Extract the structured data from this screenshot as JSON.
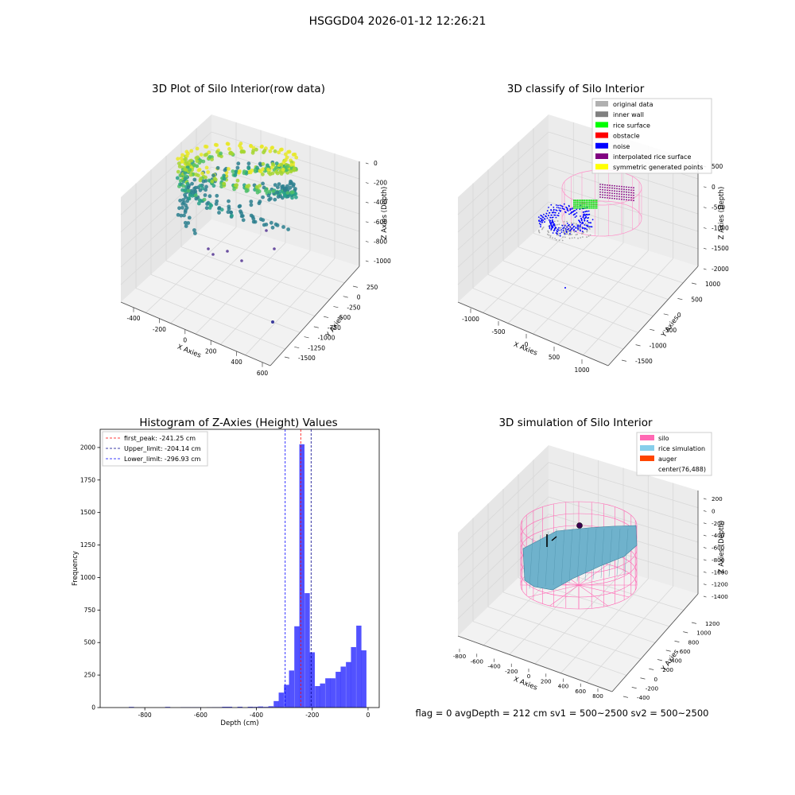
{
  "suptitle": "HSGGD04 2026-01-12 12:26:21",
  "footer": "flag = 0     avgDepth = 212 cm  sv1 = 500~2500  sv2 = 500~2500",
  "panel1": {
    "title": "3D Plot of Silo Interior(row data)",
    "xlabel": "X Axies",
    "ylabel": "Y Axies",
    "zlabel": "Z Axies (Depth)",
    "xticks": [
      "-400",
      "-200",
      "0",
      "200",
      "400",
      "600"
    ],
    "yticks": [
      "250",
      "0",
      "-250",
      "-500",
      "-750",
      "-1000",
      "-1250",
      "-1500"
    ],
    "zticks": [
      "0",
      "-200",
      "-400",
      "-600",
      "-800",
      "-1000"
    ]
  },
  "panel2": {
    "title": "3D classify of Silo Interior",
    "xlabel": "X Axies",
    "ylabel": "Y Axies",
    "zlabel": "Z Axies (Depth)",
    "xticks": [
      "-1000",
      "-500",
      "0",
      "500",
      "1000"
    ],
    "yticks": [
      "1000",
      "500",
      "0",
      "-500",
      "-1000",
      "-1500"
    ],
    "zticks": [
      "500",
      "0",
      "-500",
      "-1000",
      "-1500",
      "-2000"
    ],
    "legend": [
      {
        "label": "original data",
        "color": "#b0b0b0"
      },
      {
        "label": "inner wall",
        "color": "#808080"
      },
      {
        "label": "rice surface",
        "color": "#00ff00"
      },
      {
        "label": "obstacle",
        "color": "#ff0000"
      },
      {
        "label": "noise",
        "color": "#0000ff"
      },
      {
        "label": "interpolated rice surface",
        "color": "#800080"
      },
      {
        "label": "symmetric generated points",
        "color": "#ffff00"
      }
    ]
  },
  "panel4": {
    "title": "3D simulation of Silo Interior",
    "xlabel": "X Axies",
    "ylabel": "Y Axies",
    "zlabel": "Z Axies (Depth)",
    "xticks": [
      "-800",
      "-600",
      "-400",
      "-200",
      "0",
      "200",
      "400",
      "600",
      "800"
    ],
    "yticks": [
      "1200",
      "1000",
      "800",
      "600",
      "400",
      "200",
      "0",
      "-200",
      "-400"
    ],
    "zticks": [
      "200",
      "0",
      "-200",
      "-400",
      "-600",
      "-800",
      "-1000",
      "-1200",
      "-1400"
    ],
    "legend": [
      {
        "label": "silo",
        "color": "#ff69b4"
      },
      {
        "label": "rice simulation",
        "color": "#87ceeb"
      },
      {
        "label": "auger",
        "color": "#ff4500"
      },
      {
        "label": "center(76,488)",
        "color": ""
      }
    ]
  },
  "chart_data": {
    "type": "bar",
    "title": "Histogram of Z-Axies (Height) Values",
    "xlabel": "Depth (cm)",
    "ylabel": "Frequency",
    "xlim": [
      -960,
      40
    ],
    "ylim": [
      0,
      2140
    ],
    "xticks": [
      -800,
      -600,
      -400,
      -200,
      0
    ],
    "yticks": [
      0,
      250,
      500,
      750,
      1000,
      1250,
      1500,
      1750,
      2000
    ],
    "bar_color": "#0000ff",
    "bin_width": 18.5,
    "bins": [
      {
        "x": -848,
        "value": 5
      },
      {
        "x": -718,
        "value": 5
      },
      {
        "x": -662,
        "value": 3
      },
      {
        "x": -644,
        "value": 3
      },
      {
        "x": -625,
        "value": 3
      },
      {
        "x": -607,
        "value": 3
      },
      {
        "x": -570,
        "value": 2
      },
      {
        "x": -551,
        "value": 3
      },
      {
        "x": -533,
        "value": 3
      },
      {
        "x": -514,
        "value": 6
      },
      {
        "x": -496,
        "value": 6
      },
      {
        "x": -459,
        "value": 6
      },
      {
        "x": -422,
        "value": 6
      },
      {
        "x": -403,
        "value": 5
      },
      {
        "x": -385,
        "value": 8
      },
      {
        "x": -366,
        "value": 5
      },
      {
        "x": -348,
        "value": 10
      },
      {
        "x": -329,
        "value": 50
      },
      {
        "x": -311,
        "value": 115
      },
      {
        "x": -292,
        "value": 175
      },
      {
        "x": -274,
        "value": 285
      },
      {
        "x": -255,
        "value": 625
      },
      {
        "x": -237,
        "value": 2025
      },
      {
        "x": -218,
        "value": 880
      },
      {
        "x": -200,
        "value": 425
      },
      {
        "x": -181,
        "value": 165
      },
      {
        "x": -163,
        "value": 185
      },
      {
        "x": -144,
        "value": 225
      },
      {
        "x": -126,
        "value": 225
      },
      {
        "x": -107,
        "value": 275
      },
      {
        "x": -89,
        "value": 315
      },
      {
        "x": -70,
        "value": 350
      },
      {
        "x": -52,
        "value": 465
      },
      {
        "x": -33,
        "value": 630
      },
      {
        "x": -15,
        "value": 440
      }
    ],
    "vlines": [
      {
        "name": "first_peak: -241.25 cm",
        "x": -241.25,
        "color": "#ff0000"
      },
      {
        "name": "Upper_limit: -204.14 cm",
        "x": -204.14,
        "color": "#00008b"
      },
      {
        "name": "Lower_limit: -296.93 cm",
        "x": -296.93,
        "color": "#0000ff"
      }
    ],
    "legend_position": "upper-left"
  }
}
